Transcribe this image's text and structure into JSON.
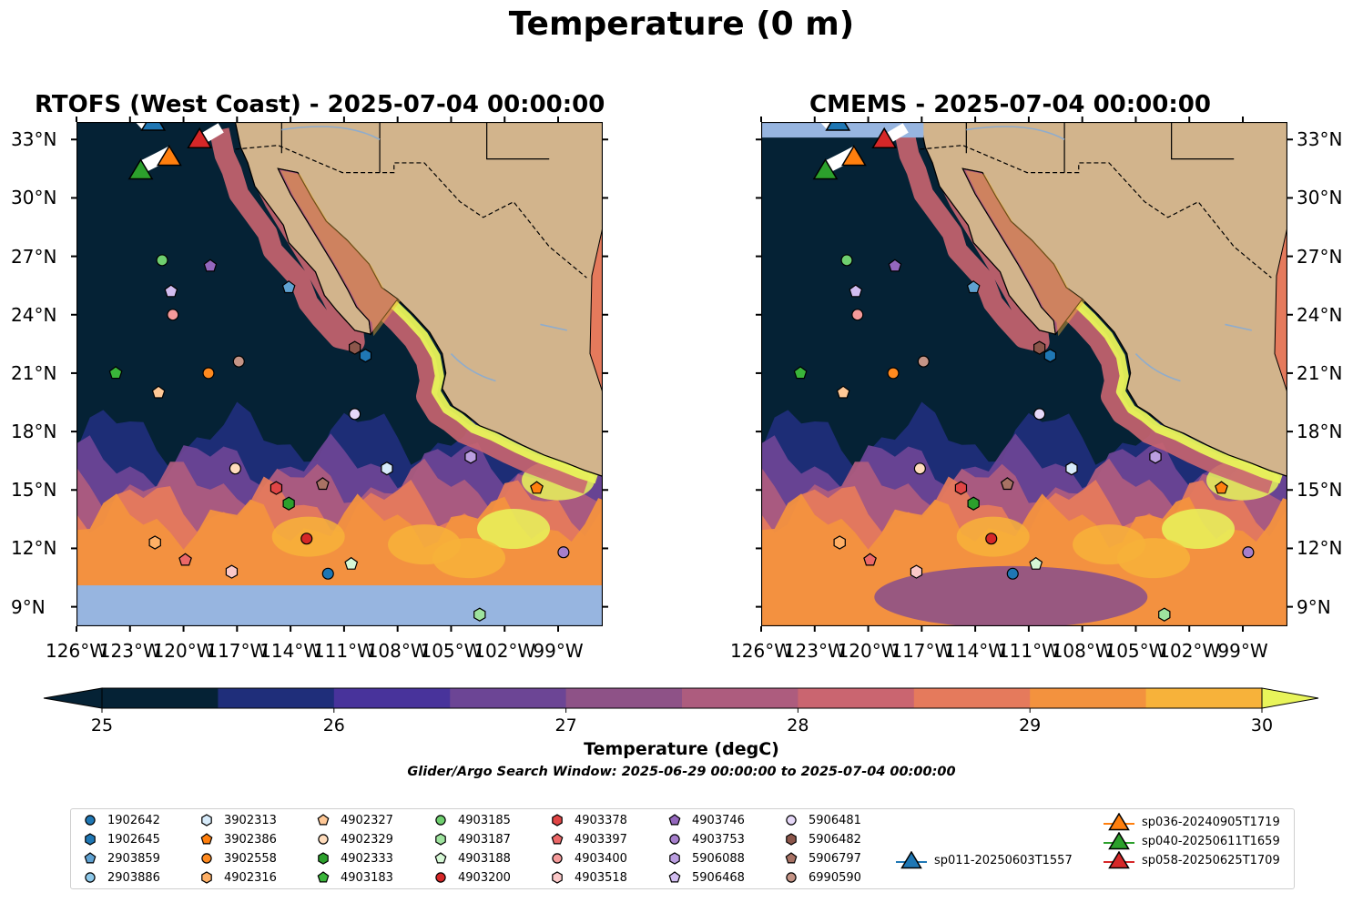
{
  "figure_title": "Temperature (0 m)",
  "panels": [
    {
      "title": "RTOFS (West Coast) - 2025-07-04 00:00:00"
    },
    {
      "title": "CMEMS - 2025-07-04 00:00:00"
    }
  ],
  "lat_ticks": [
    "33°N",
    "30°N",
    "27°N",
    "24°N",
    "21°N",
    "18°N",
    "15°N",
    "12°N",
    "9°N"
  ],
  "lon_ticks": [
    "126°W",
    "123°W",
    "120°W",
    "117°W",
    "114°W",
    "111°W",
    "108°W",
    "105°W",
    "102°W",
    "99°W"
  ],
  "colorbar": {
    "label": "Temperature (degC)",
    "ticks": [
      "25",
      "26",
      "27",
      "28",
      "29",
      "30"
    ],
    "colors": [
      "#052235",
      "#1f2e7a",
      "#48339b",
      "#6c4595",
      "#8e5287",
      "#ad5c7e",
      "#ca6570",
      "#e57a5c",
      "#f3923e",
      "#f7b23a",
      "#e8f45a"
    ]
  },
  "search_window": "Glider/Argo Search Window: 2025-06-29 00:00:00 to 2025-07-04 00:00:00",
  "map_colors": {
    "ocean_cold": "#052235",
    "land": "#d2b48c",
    "nodata": "#97b5e0",
    "rivers": "#8faccc"
  },
  "legend": [
    {
      "label": "1902642",
      "marker": "circle",
      "color": "#1f77b4"
    },
    {
      "label": "1902645",
      "marker": "hexagon",
      "color": "#1f77b4"
    },
    {
      "label": "2903859",
      "marker": "pentagon",
      "color": "#5fa2d2"
    },
    {
      "label": "2903886",
      "marker": "circle",
      "color": "#8ec9ea"
    },
    {
      "label": "3902313",
      "marker": "hexagon",
      "color": "#d7ebfa"
    },
    {
      "label": "3902386",
      "marker": "pentagon",
      "color": "#ff7f0e"
    },
    {
      "label": "3902558",
      "marker": "circle",
      "color": "#ff8a1f"
    },
    {
      "label": "4902316",
      "marker": "hexagon",
      "color": "#ffb066"
    },
    {
      "label": "4902327",
      "marker": "pentagon",
      "color": "#ffc896"
    },
    {
      "label": "4902329",
      "marker": "circle",
      "color": "#ffdcbc"
    },
    {
      "label": "4902333",
      "marker": "hexagon",
      "color": "#2ca02c"
    },
    {
      "label": "4903183",
      "marker": "pentagon",
      "color": "#3ab53a"
    },
    {
      "label": "4903185",
      "marker": "circle",
      "color": "#6fcf6f"
    },
    {
      "label": "4903187",
      "marker": "hexagon",
      "color": "#9ee39e"
    },
    {
      "label": "4903188",
      "marker": "pentagon",
      "color": "#d6f8d6"
    },
    {
      "label": "4903200",
      "marker": "circle",
      "color": "#d62728"
    },
    {
      "label": "4903378",
      "marker": "hexagon",
      "color": "#e04545"
    },
    {
      "label": "4903397",
      "marker": "pentagon",
      "color": "#ec6868"
    },
    {
      "label": "4903400",
      "marker": "circle",
      "color": "#f59a9a"
    },
    {
      "label": "4903518",
      "marker": "hexagon",
      "color": "#fbc8c8"
    },
    {
      "label": "4903746",
      "marker": "pentagon",
      "color": "#9467bd"
    },
    {
      "label": "4903753",
      "marker": "circle",
      "color": "#a67fcc"
    },
    {
      "label": "5906088",
      "marker": "hexagon",
      "color": "#bb9ee0"
    },
    {
      "label": "5906468",
      "marker": "pentagon",
      "color": "#d2bdf0"
    },
    {
      "label": "5906481",
      "marker": "circle",
      "color": "#e6d8f8"
    },
    {
      "label": "5906482",
      "marker": "hexagon",
      "color": "#8c564b"
    },
    {
      "label": "5906797",
      "marker": "pentagon",
      "color": "#a87264"
    },
    {
      "label": "6990590",
      "marker": "circle",
      "color": "#c49486"
    },
    {
      "label": "sp011-20250603T1557",
      "marker": "triangle",
      "color": "#1f77b4"
    },
    {
      "label": "sp036-20240905T1719",
      "marker": "triangle",
      "color": "#ff7f0e"
    },
    {
      "label": "sp040-20250611T1659",
      "marker": "triangle",
      "color": "#2ca02c"
    },
    {
      "label": "sp058-20250625T1709",
      "marker": "triangle",
      "color": "#d62728"
    }
  ],
  "floats": [
    {
      "label": "4903185",
      "lon": -121.2,
      "lat": 26.8
    },
    {
      "label": "4903746",
      "lon": -118.5,
      "lat": 26.5
    },
    {
      "label": "5906468",
      "lon": -120.7,
      "lat": 25.2
    },
    {
      "label": "2903859",
      "lon": -114.1,
      "lat": 25.4
    },
    {
      "label": "4903400",
      "lon": -120.6,
      "lat": 24.0
    },
    {
      "label": "5906482",
      "lon": -110.4,
      "lat": 22.3
    },
    {
      "label": "1902645",
      "lon": -109.8,
      "lat": 21.9
    },
    {
      "label": "6990590",
      "lon": -116.9,
      "lat": 21.6
    },
    {
      "label": "4903183",
      "lon": -123.8,
      "lat": 21.0
    },
    {
      "label": "3902558",
      "lon": -118.6,
      "lat": 21.0
    },
    {
      "label": "4902327",
      "lon": -121.4,
      "lat": 20.0
    },
    {
      "label": "5906481",
      "lon": -110.4,
      "lat": 18.9
    },
    {
      "label": "4902329",
      "lon": -117.1,
      "lat": 16.1
    },
    {
      "label": "3902313",
      "lon": -108.6,
      "lat": 16.1
    },
    {
      "label": "5906088",
      "lon": -103.9,
      "lat": 16.7
    },
    {
      "label": "4903378",
      "lon": -114.8,
      "lat": 15.1
    },
    {
      "label": "5906797",
      "lon": -112.2,
      "lat": 15.3
    },
    {
      "label": "3902386",
      "lon": -100.2,
      "lat": 15.1
    },
    {
      "label": "4902333",
      "lon": -114.1,
      "lat": 14.3
    },
    {
      "label": "4902316",
      "lon": -121.6,
      "lat": 12.3
    },
    {
      "label": "4903200",
      "lon": -113.1,
      "lat": 12.5
    },
    {
      "label": "4903397",
      "lon": -119.9,
      "lat": 11.4
    },
    {
      "label": "4903518",
      "lon": -117.3,
      "lat": 10.8
    },
    {
      "label": "1902642",
      "lon": -111.9,
      "lat": 10.7
    },
    {
      "label": "4903188",
      "lon": -110.6,
      "lat": 11.2
    },
    {
      "label": "4903753",
      "lon": -98.7,
      "lat": 11.8
    },
    {
      "label": "4903187",
      "lon": -103.4,
      "lat": 8.6
    }
  ],
  "gliders": [
    {
      "label": "sp011-20250603T1557",
      "lon": -121.7,
      "lat": 33.9
    },
    {
      "label": "sp036-20240905T1719",
      "lon": -120.8,
      "lat": 32.1
    },
    {
      "label": "sp040-20250611T1659",
      "lon": -122.4,
      "lat": 31.4
    },
    {
      "label": "sp058-20250625T1709",
      "lon": -119.1,
      "lat": 33.0
    }
  ]
}
